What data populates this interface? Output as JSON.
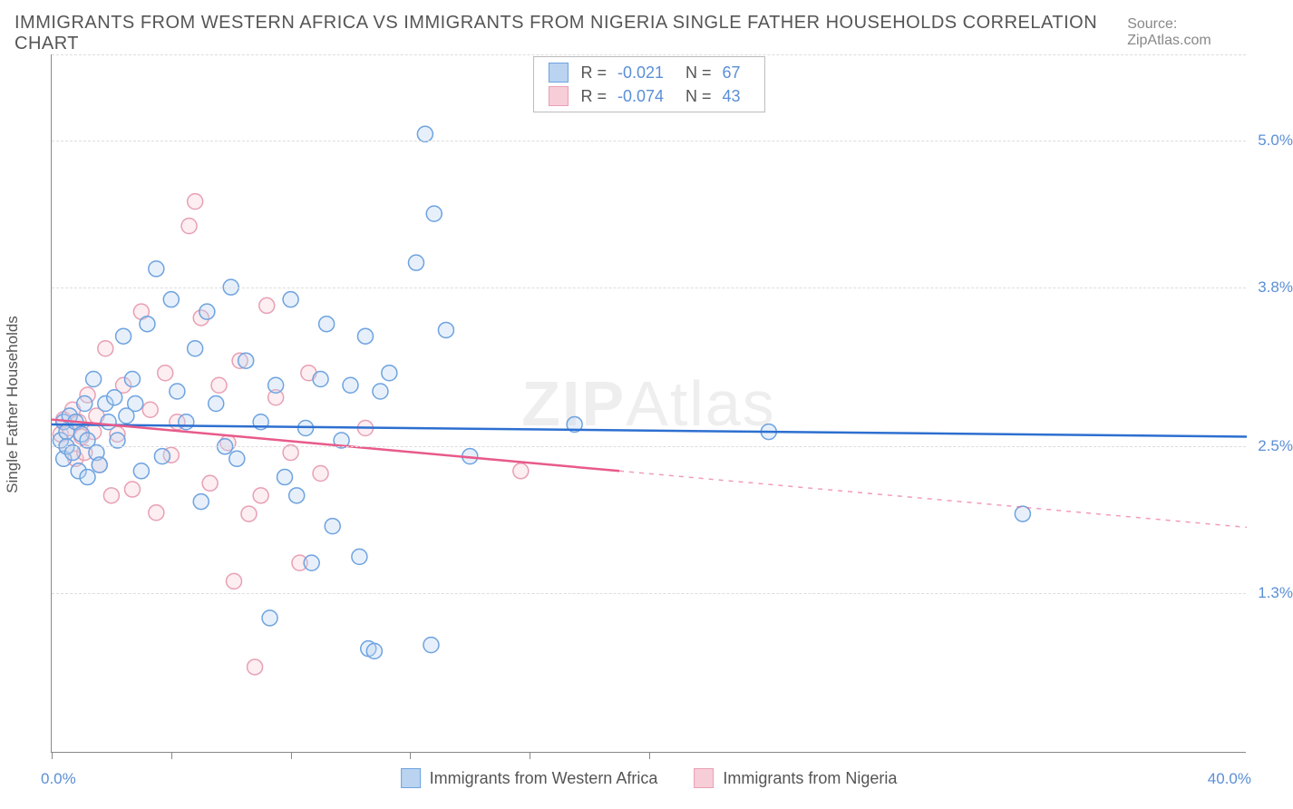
{
  "title": "IMMIGRANTS FROM WESTERN AFRICA VS IMMIGRANTS FROM NIGERIA SINGLE FATHER HOUSEHOLDS CORRELATION CHART",
  "source": "Source: ZipAtlas.com",
  "watermark": "ZIPAtlas",
  "yaxis_title": "Single Father Households",
  "chart": {
    "type": "scatter-correlation",
    "background_color": "#ffffff",
    "grid_color": "#dddddd",
    "axis_color": "#888888",
    "tick_label_color": "#5b8fd6",
    "xlim": [
      0.0,
      40.0
    ],
    "ylim": [
      0.0,
      5.7
    ],
    "x_tick_positions": [
      0,
      4,
      8,
      12,
      16,
      20
    ],
    "y_gridlines": [
      1.3,
      2.5,
      3.8,
      5.0
    ],
    "y_tick_labels": [
      "1.3%",
      "2.5%",
      "3.8%",
      "5.0%"
    ],
    "x_tick_labels": {
      "min": "0.0%",
      "max": "40.0%"
    },
    "marker_radius": 8.5,
    "marker_stroke_width": 1.5,
    "marker_fill_opacity": 0.35,
    "line_width": 2.5,
    "series": [
      {
        "name": "Immigrants from Western Africa",
        "color_fill": "#b9d3f0",
        "color_stroke": "#6ea3e0",
        "line_color": "#2d6fd0",
        "r_value": "-0.021",
        "n_value": "67",
        "regression": {
          "solid_x": [
            0,
            40
          ],
          "solid_y": [
            2.68,
            2.58
          ]
        },
        "points": [
          [
            0.3,
            2.55
          ],
          [
            0.4,
            2.4
          ],
          [
            0.4,
            2.7
          ],
          [
            0.5,
            2.62
          ],
          [
            0.5,
            2.5
          ],
          [
            0.6,
            2.75
          ],
          [
            0.7,
            2.45
          ],
          [
            0.8,
            2.7
          ],
          [
            0.9,
            2.3
          ],
          [
            1.0,
            2.6
          ],
          [
            1.1,
            2.85
          ],
          [
            1.2,
            2.55
          ],
          [
            1.2,
            2.25
          ],
          [
            1.4,
            3.05
          ],
          [
            1.5,
            2.45
          ],
          [
            1.6,
            2.35
          ],
          [
            1.8,
            2.85
          ],
          [
            1.9,
            2.7
          ],
          [
            2.1,
            2.9
          ],
          [
            2.2,
            2.55
          ],
          [
            2.4,
            3.4
          ],
          [
            2.5,
            2.75
          ],
          [
            2.7,
            3.05
          ],
          [
            2.8,
            2.85
          ],
          [
            3.0,
            2.3
          ],
          [
            3.2,
            3.5
          ],
          [
            3.5,
            3.95
          ],
          [
            3.7,
            2.42
          ],
          [
            4.0,
            3.7
          ],
          [
            4.2,
            2.95
          ],
          [
            4.5,
            2.7
          ],
          [
            4.8,
            3.3
          ],
          [
            5.0,
            2.05
          ],
          [
            5.2,
            3.6
          ],
          [
            5.5,
            2.85
          ],
          [
            5.8,
            2.5
          ],
          [
            6.0,
            3.8
          ],
          [
            6.2,
            2.4
          ],
          [
            6.5,
            3.2
          ],
          [
            7.0,
            2.7
          ],
          [
            7.3,
            1.1
          ],
          [
            7.5,
            3.0
          ],
          [
            7.8,
            2.25
          ],
          [
            8.0,
            3.7
          ],
          [
            8.2,
            2.1
          ],
          [
            8.5,
            2.65
          ],
          [
            8.7,
            1.55
          ],
          [
            9.0,
            3.05
          ],
          [
            9.2,
            3.5
          ],
          [
            9.4,
            1.85
          ],
          [
            9.7,
            2.55
          ],
          [
            10.0,
            3.0
          ],
          [
            10.3,
            1.6
          ],
          [
            10.5,
            3.4
          ],
          [
            10.6,
            0.85
          ],
          [
            10.8,
            0.83
          ],
          [
            11.0,
            2.95
          ],
          [
            11.3,
            3.1
          ],
          [
            12.2,
            4.0
          ],
          [
            12.5,
            5.05
          ],
          [
            12.7,
            0.88
          ],
          [
            12.8,
            4.4
          ],
          [
            13.2,
            3.45
          ],
          [
            14.0,
            2.42
          ],
          [
            17.5,
            2.68
          ],
          [
            24.0,
            2.62
          ],
          [
            32.5,
            1.95
          ]
        ]
      },
      {
        "name": "Immigrants from Nigeria",
        "color_fill": "#f7cdd8",
        "color_stroke": "#e8a0b4",
        "line_color": "#e85a8a",
        "r_value": "-0.074",
        "n_value": "43",
        "regression": {
          "solid_x": [
            0,
            19
          ],
          "solid_y": [
            2.72,
            2.3
          ],
          "dashed_x": [
            19,
            40
          ],
          "dashed_y": [
            2.3,
            1.84
          ]
        },
        "points": [
          [
            0.3,
            2.6
          ],
          [
            0.4,
            2.72
          ],
          [
            0.5,
            2.5
          ],
          [
            0.6,
            2.65
          ],
          [
            0.7,
            2.8
          ],
          [
            0.8,
            2.4
          ],
          [
            0.9,
            2.7
          ],
          [
            1.0,
            2.58
          ],
          [
            1.1,
            2.45
          ],
          [
            1.2,
            2.92
          ],
          [
            1.4,
            2.62
          ],
          [
            1.5,
            2.75
          ],
          [
            1.6,
            2.35
          ],
          [
            1.8,
            3.3
          ],
          [
            2.0,
            2.1
          ],
          [
            2.2,
            2.6
          ],
          [
            2.4,
            3.0
          ],
          [
            2.7,
            2.15
          ],
          [
            3.0,
            3.6
          ],
          [
            3.3,
            2.8
          ],
          [
            3.5,
            1.96
          ],
          [
            3.8,
            3.1
          ],
          [
            4.0,
            2.43
          ],
          [
            4.2,
            2.7
          ],
          [
            4.6,
            4.3
          ],
          [
            4.8,
            4.5
          ],
          [
            5.0,
            3.55
          ],
          [
            5.3,
            2.2
          ],
          [
            5.6,
            3.0
          ],
          [
            5.9,
            2.53
          ],
          [
            6.1,
            1.4
          ],
          [
            6.3,
            3.2
          ],
          [
            6.6,
            1.95
          ],
          [
            6.8,
            0.7
          ],
          [
            7.0,
            2.1
          ],
          [
            7.2,
            3.65
          ],
          [
            7.5,
            2.9
          ],
          [
            8.0,
            2.45
          ],
          [
            8.3,
            1.55
          ],
          [
            8.6,
            3.1
          ],
          [
            9.0,
            2.28
          ],
          [
            10.5,
            2.65
          ],
          [
            15.7,
            2.3
          ]
        ]
      }
    ],
    "legend_bottom": [
      {
        "label": "Immigrants from Western Africa",
        "fill": "#b9d3f0",
        "stroke": "#6ea3e0"
      },
      {
        "label": "Immigrants from Nigeria",
        "fill": "#f7cdd8",
        "stroke": "#e8a0b4"
      }
    ]
  }
}
